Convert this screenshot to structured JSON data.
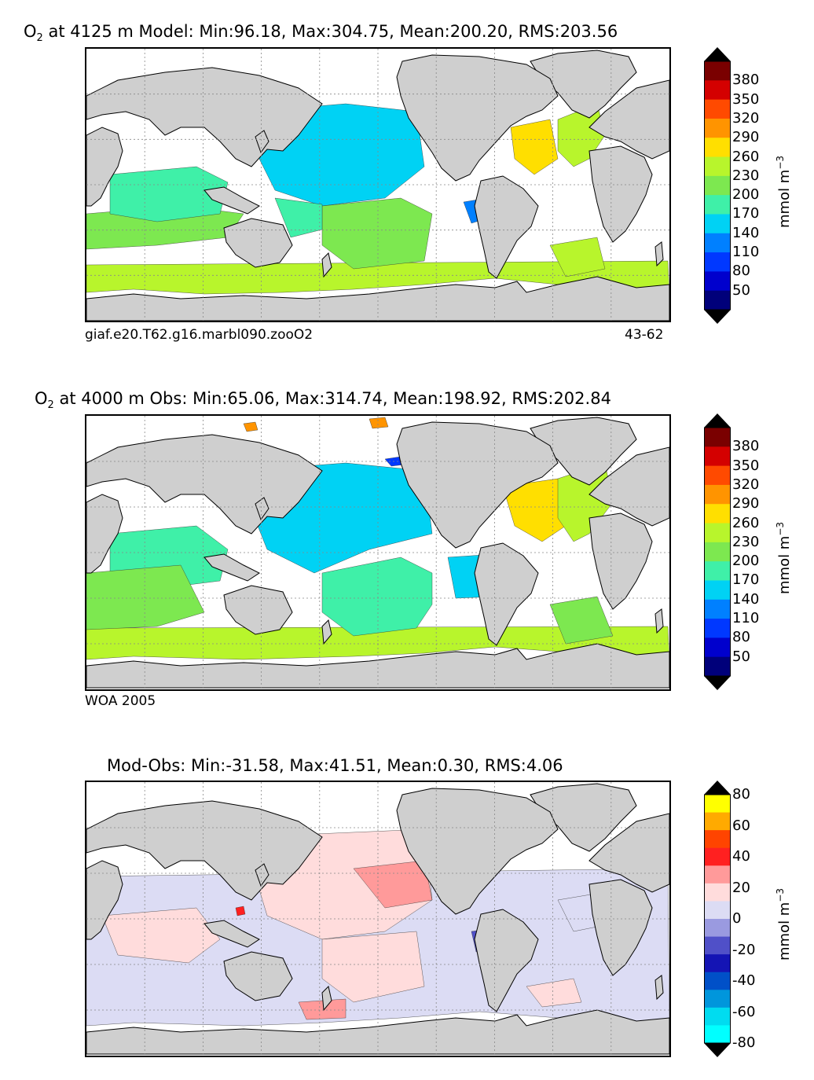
{
  "panels": [
    {
      "title_var": "O",
      "title_sub": "2",
      "title_rest": "at 4125 m Model: Min:96.18, Max:304.75, Mean:200.20, RMS:203.56",
      "caption_left": "giaf.e20.T62.g16.marbl090.zooO2",
      "caption_right": "43-62",
      "colorbar": {
        "ticks": [
          "380",
          "350",
          "320",
          "290",
          "260",
          "230",
          "200",
          "170",
          "140",
          "110",
          "80",
          "50"
        ],
        "unit": "mmol m",
        "unit_sup": "−3",
        "colors": [
          "#7a0000",
          "#d40000",
          "#ff4a00",
          "#ff9400",
          "#ffdf00",
          "#b8f52c",
          "#7de850",
          "#3ff0a8",
          "#00d2f4",
          "#0080ff",
          "#0038ff",
          "#0000cd",
          "#00007a"
        ]
      }
    },
    {
      "title_var": "O",
      "title_sub": "2",
      "title_rest": "at 4000 m Obs: Min:65.06, Max:314.74, Mean:198.92, RMS:202.84",
      "caption_left": "WOA 2005",
      "caption_right": "",
      "colorbar": {
        "ticks": [
          "380",
          "350",
          "320",
          "290",
          "260",
          "230",
          "200",
          "170",
          "140",
          "110",
          "80",
          "50"
        ],
        "unit": "mmol m",
        "unit_sup": "−3",
        "colors": [
          "#7a0000",
          "#d40000",
          "#ff4a00",
          "#ff9400",
          "#ffdf00",
          "#b8f52c",
          "#7de850",
          "#3ff0a8",
          "#00d2f4",
          "#0080ff",
          "#0038ff",
          "#0000cd",
          "#00007a"
        ]
      }
    },
    {
      "title_var": "",
      "title_sub": "",
      "title_rest": "Mod-Obs: Min:-31.58, Max:41.51, Mean:0.30, RMS:4.06",
      "caption_left": "",
      "caption_right": "",
      "colorbar": {
        "ticks": [
          "80",
          "60",
          "40",
          "20",
          "0",
          "-20",
          "-40",
          "-60",
          "-80"
        ],
        "unit": "mmol m",
        "unit_sup": "−3",
        "colors": [
          "#ffff00",
          "#ffaa00",
          "#ff4400",
          "#ff2020",
          "#ff9a9a",
          "#ffdcdc",
          "#dcdcf4",
          "#9a9ae0",
          "#5050c8",
          "#1414b4",
          "#0050c8",
          "#0096dc",
          "#00dcf0",
          "#00ffff"
        ]
      }
    }
  ],
  "land_color": "#cfcfcf",
  "grid_color": "#888888"
}
